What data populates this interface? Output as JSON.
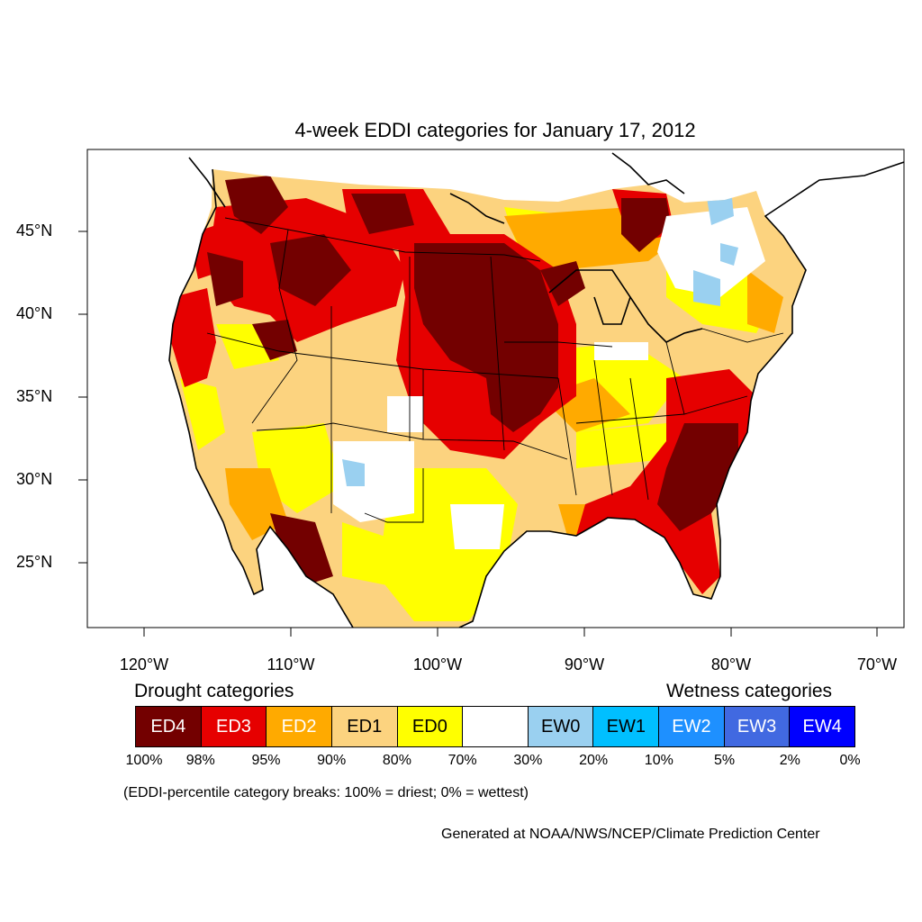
{
  "title": "4-week EDDI categories for January 17, 2012",
  "lat_labels": [
    "45°N",
    "40°N",
    "35°N",
    "30°N",
    "25°N"
  ],
  "lon_labels": [
    "120°W",
    "110°W",
    "100°W",
    "90°W",
    "80°W",
    "70°W"
  ],
  "legend": {
    "drought_heading": "Drought categories",
    "wetness_heading": "Wetness categories",
    "categories": [
      {
        "label": "ED4",
        "color": "#730000",
        "text_color": "#ffffff"
      },
      {
        "label": "ED3",
        "color": "#e60000",
        "text_color": "#ffffff"
      },
      {
        "label": "ED2",
        "color": "#ffaa00",
        "text_color": "#ffffff"
      },
      {
        "label": "ED1",
        "color": "#fcd37f",
        "text_color": "#000000"
      },
      {
        "label": "ED0",
        "color": "#ffff00",
        "text_color": "#000000"
      },
      {
        "label": "",
        "color": "#ffffff",
        "text_color": "#000000"
      },
      {
        "label": "EW0",
        "color": "#9ad0f0",
        "text_color": "#000000"
      },
      {
        "label": "EW1",
        "color": "#00bfff",
        "text_color": "#000000"
      },
      {
        "label": "EW2",
        "color": "#1e90ff",
        "text_color": "#ffffff"
      },
      {
        "label": "EW3",
        "color": "#4169e1",
        "text_color": "#ffffff"
      },
      {
        "label": "EW4",
        "color": "#0000ff",
        "text_color": "#ffffff"
      }
    ],
    "breaks": [
      "100%",
      "98%",
      "95%",
      "90%",
      "80%",
      "70%",
      "30%",
      "20%",
      "10%",
      "5%",
      "2%",
      "0%"
    ]
  },
  "footnote": "(EDDI-percentile category breaks: 100% = driest; 0% = wettest)",
  "credit": "Generated at NOAA/NWS/NCEP/Climate Prediction Center"
}
